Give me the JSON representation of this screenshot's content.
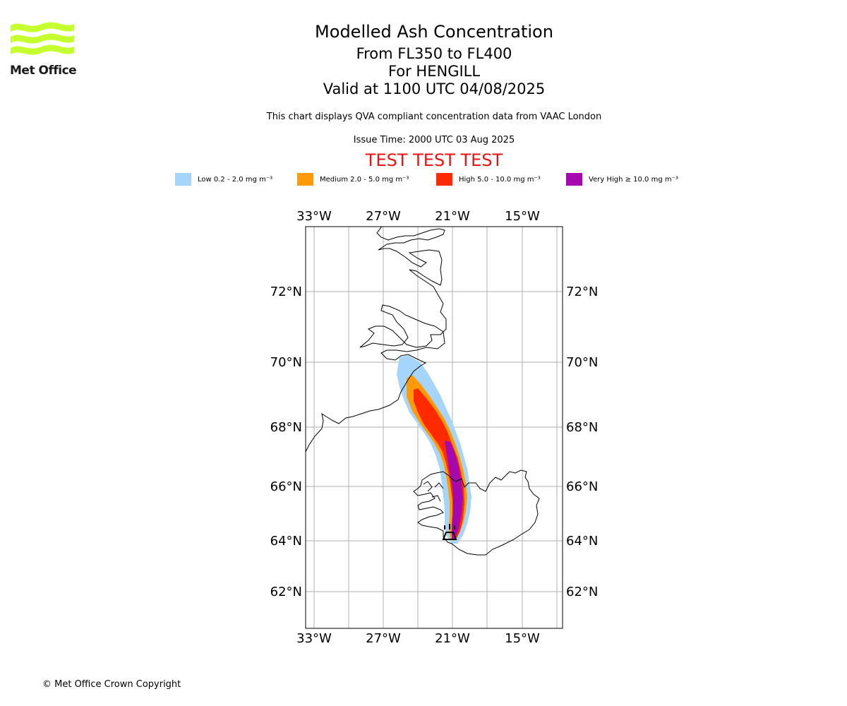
{
  "logo": {
    "name": "Met Office"
  },
  "title": {
    "main": "Modelled Ash Concentration",
    "levels": "From FL350 to FL400",
    "volcano": "For HENGILL",
    "valid": "Valid at 1100 UTC 04/08/2025"
  },
  "description": "This chart displays QVA compliant concentration data from VAAC London",
  "issue_time": "Issue Time: 2000 UTC 03 Aug 2025",
  "test_banner": "TEST TEST TEST",
  "legend": [
    {
      "label": "Low 0.2 - 2.0 mg m⁻³",
      "color": "#a5d5fb"
    },
    {
      "label": "Medium 2.0 - 5.0 mg m⁻³",
      "color": "#ff9b0a"
    },
    {
      "label": "High 5.0 - 10.0 mg m⁻³",
      "color": "#ff2a00"
    },
    {
      "label": "Very High ≥ 10.0 mg m⁻³",
      "color": "#a608b0"
    }
  ],
  "map": {
    "lon_ticks": [
      "33°W",
      "27°W",
      "21°W",
      "15°W"
    ],
    "lat_ticks": [
      "72°N",
      "70°N",
      "68°N",
      "66°N",
      "64°N",
      "62°N"
    ],
    "grid": true
  },
  "copyright": "© Met Office Crown Copyright"
}
